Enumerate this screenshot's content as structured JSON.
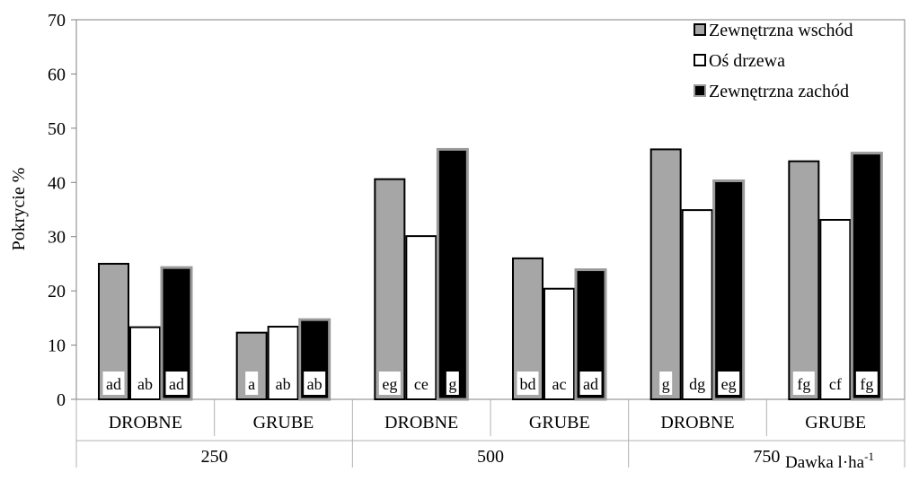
{
  "chart_data": {
    "type": "bar",
    "ylabel": "Pokrycie %",
    "ylim": [
      0,
      70
    ],
    "yticks": [
      0,
      10,
      20,
      30,
      40,
      50,
      60,
      70
    ],
    "grid": false,
    "legend_position": "top-right",
    "x_axis_note": "Dawka l·ha",
    "x_axis_note_sup": "-1",
    "groups": [
      {
        "label": "250",
        "subgroups": [
          "DROBNE",
          "GRUBE"
        ]
      },
      {
        "label": "500",
        "subgroups": [
          "DROBNE",
          "GRUBE"
        ]
      },
      {
        "label": "750",
        "subgroups": [
          "DROBNE",
          "GRUBE"
        ]
      }
    ],
    "categories": [
      "DROBNE",
      "GRUBE",
      "DROBNE",
      "GRUBE",
      "DROBNE",
      "GRUBE"
    ],
    "series": [
      {
        "name": "Zewnętrzna wschód",
        "color": "#a6a6a6",
        "values": [
          25,
          12.3,
          40.6,
          26,
          46.1,
          43.9
        ],
        "labels": [
          "ad",
          "a",
          "eg",
          "bd",
          "g",
          "fg"
        ]
      },
      {
        "name": "Oś  drzewa",
        "color": "#ffffff",
        "values": [
          13.3,
          13.4,
          30.1,
          20.4,
          34.9,
          33.1
        ],
        "labels": [
          "ab",
          "ab",
          "ce",
          "ac",
          "dg",
          "cf"
        ]
      },
      {
        "name": "Zewnętrzna  zachód",
        "color": "#000000",
        "values": [
          24.3,
          14.7,
          46.1,
          23.9,
          40.3,
          45.4
        ],
        "labels": [
          "ad",
          "ab",
          "g",
          "ad",
          "eg",
          "fg"
        ]
      }
    ]
  }
}
